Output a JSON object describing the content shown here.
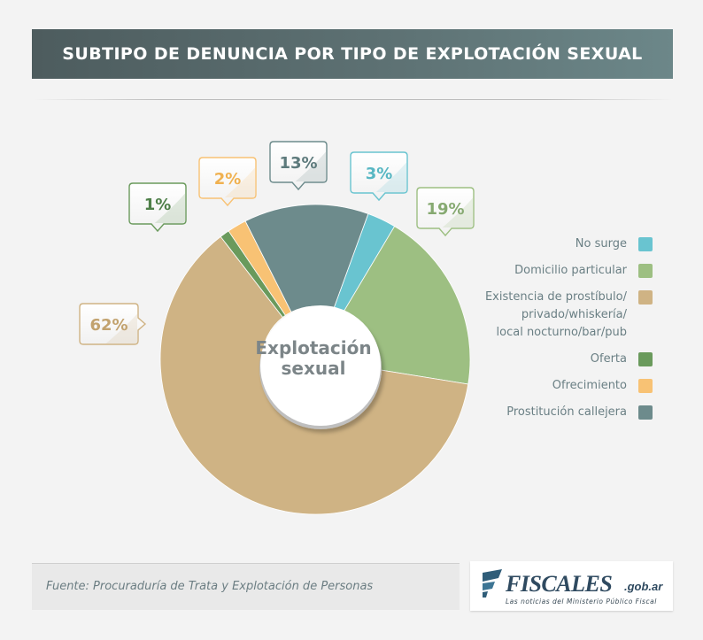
{
  "title": "SUBTIPO DE DENUNCIA POR TIPO DE EXPLOTACIÓN SEXUAL",
  "chart_data": {
    "type": "pie",
    "center_label": [
      "Explotación",
      "sexual"
    ],
    "slices": [
      {
        "label": "No surge",
        "value": 3,
        "value_label": "3%",
        "color": "#69c4d0"
      },
      {
        "label": "Domicilio particular",
        "value": 19,
        "value_label": "19%",
        "color": "#9dbf82"
      },
      {
        "label": "Existencia de prostíbulo/\nprivado/whiskería/\nlocal nocturno/bar/pub",
        "value": 62,
        "value_label": "62%",
        "color": "#cfb384"
      },
      {
        "label": "Oferta",
        "value": 1,
        "value_label": "1%",
        "color": "#6a9a5c"
      },
      {
        "label": "Ofrecimiento",
        "value": 2,
        "value_label": "2%",
        "color": "#f8c274"
      },
      {
        "label": "Prostitución callejera",
        "value": 13,
        "value_label": "13%",
        "color": "#6d8b8c"
      }
    ]
  },
  "footer": {
    "source": "Fuente: Procuraduría de Trata y Explotación de Personas"
  },
  "logo": {
    "name": "FISCALES",
    "domain": ".gob.ar",
    "tagline": "Las noticias del Ministerio Público Fiscal"
  }
}
